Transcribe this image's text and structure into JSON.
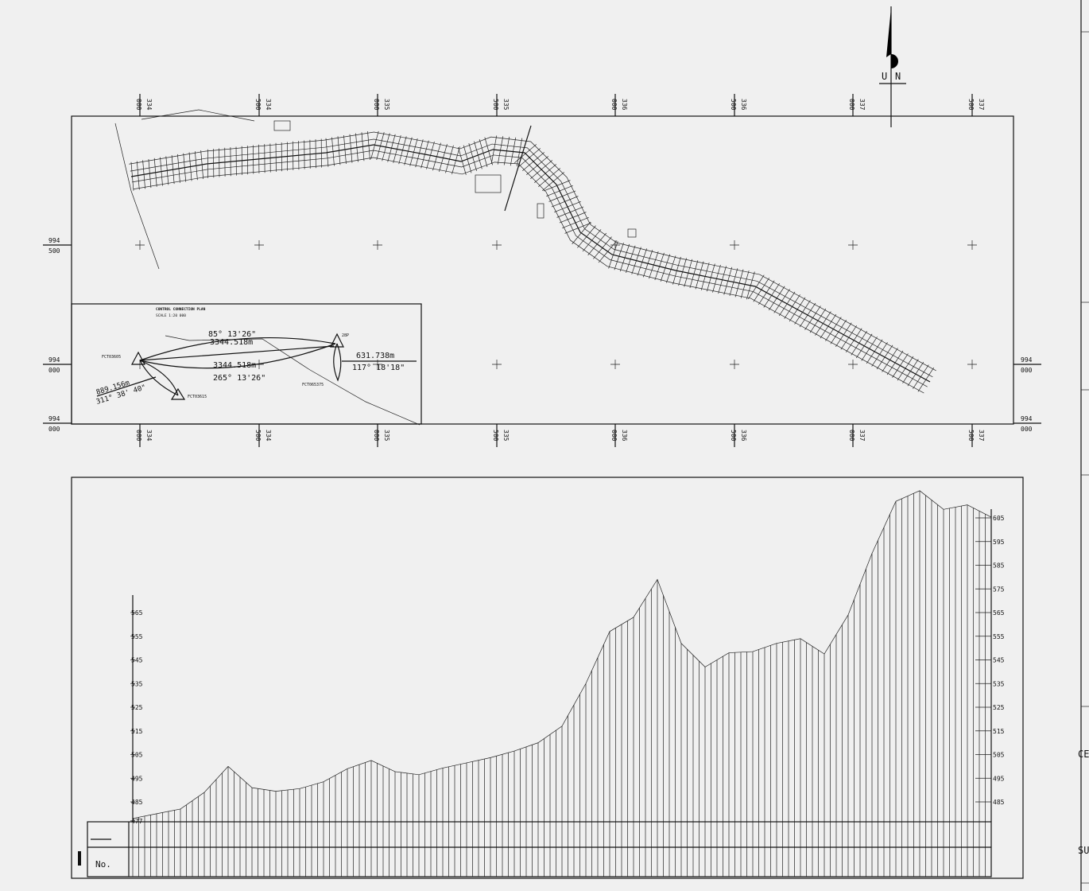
{
  "plan": {
    "easting_labels": [
      {
        "km": "334",
        "m": "000"
      },
      {
        "km": "334",
        "m": "500"
      },
      {
        "km": "335",
        "m": "000"
      },
      {
        "km": "335",
        "m": "500"
      },
      {
        "km": "336",
        "m": "000"
      },
      {
        "km": "336",
        "m": "500"
      },
      {
        "km": "337",
        "m": "000"
      },
      {
        "km": "337",
        "m": "500"
      }
    ],
    "northing_left": [
      {
        "km": "994",
        "m": "500"
      },
      {
        "km": "994",
        "m": "000"
      },
      {
        "km": "994",
        "m": "000"
      }
    ],
    "northing_right": [
      {
        "km": "994",
        "m": "000"
      },
      {
        "km": "994",
        "m": "000"
      }
    ],
    "north_arrow": {
      "left": "U",
      "right": "N"
    }
  },
  "control_plan": {
    "title": "CONTROL CONNECTION PLAN",
    "scale": "SCALE 1:20 000",
    "station_a": "FCT03605",
    "station_b": "FCT03615",
    "station_c": "FCT065375",
    "station_d": "28P",
    "bearing_ad": "85°  13'26\"",
    "dist_ad": "3344.518m",
    "dist_da": "3344.518m",
    "bearing_da": "265°  13'26\"",
    "dist_ab": "889.156m",
    "bearing_ab": "311°  38' 40\"",
    "dist_dc": "631.738m",
    "bearing_dc": "117°  18'18\""
  },
  "profile": {
    "left_axis_labels": [
      "565",
      "555",
      "545",
      "535",
      "525",
      "515",
      "505",
      "495",
      "485",
      "477"
    ],
    "right_axis_labels": [
      "605",
      "595",
      "585",
      "575",
      "565",
      "555",
      "545",
      "535",
      "525",
      "515",
      "505",
      "495",
      "485"
    ],
    "ground_elevations": [
      478,
      480,
      482,
      489,
      500,
      491,
      489.5,
      490.6,
      493.5,
      499,
      502.5,
      497.8,
      496.5,
      499.3,
      501.5,
      503.7,
      506.5,
      510,
      517,
      535,
      557,
      563,
      579,
      552,
      542,
      548,
      548.5,
      552,
      554,
      547.5,
      564,
      590,
      612,
      616.5,
      608.6,
      610.5,
      605.3
    ],
    "table_row_label": "No."
  },
  "title_block": {
    "fragments": [
      "CE",
      "SU"
    ]
  }
}
